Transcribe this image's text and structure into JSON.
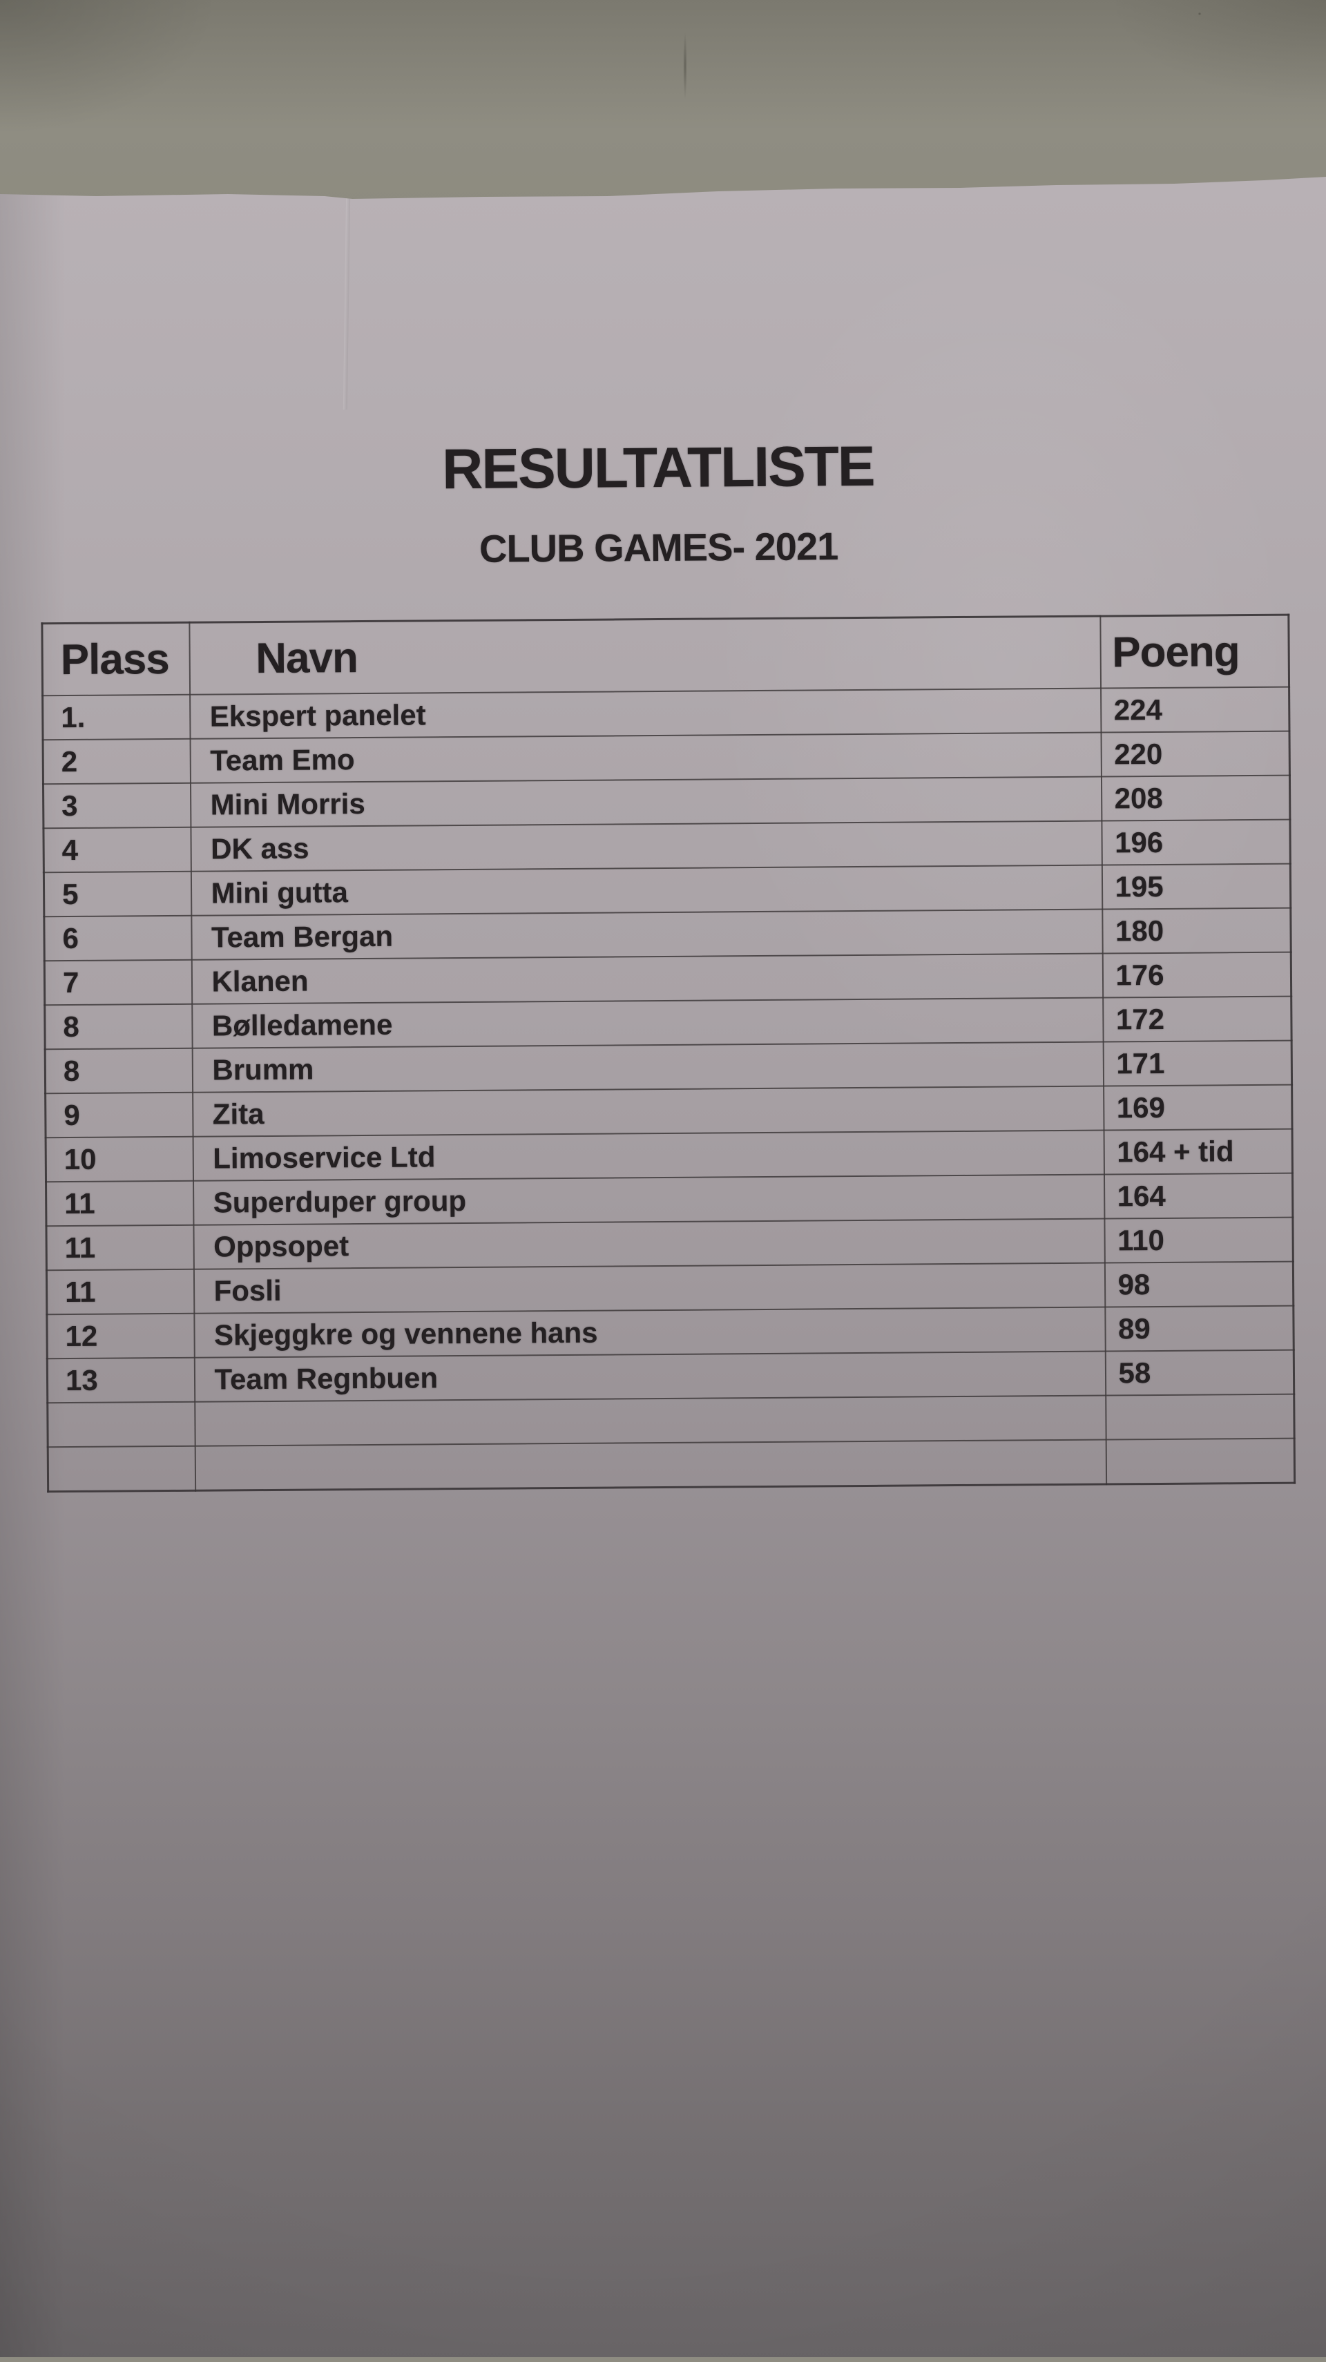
{
  "document": {
    "title": "RESULTATLISTE",
    "subtitle": "CLUB GAMES- 2021"
  },
  "table": {
    "headers": [
      "Plass",
      "Navn",
      "Poeng"
    ],
    "rows": [
      {
        "plass": "1.",
        "navn": "Ekspert panelet",
        "poeng": "224"
      },
      {
        "plass": "2",
        "navn": "Team Emo",
        "poeng": "220"
      },
      {
        "plass": "3",
        "navn": "Mini Morris",
        "poeng": "208"
      },
      {
        "plass": "4",
        "navn": "DK ass",
        "poeng": "196"
      },
      {
        "plass": "5",
        "navn": "Mini gutta",
        "poeng": "195"
      },
      {
        "plass": "6",
        "navn": "Team Bergan",
        "poeng": "180"
      },
      {
        "plass": "7",
        "navn": "Klanen",
        "poeng": "176"
      },
      {
        "plass": "8",
        "navn": "Bølledamene",
        "poeng": "172"
      },
      {
        "plass": "8",
        "navn": "Brumm",
        "poeng": "171"
      },
      {
        "plass": "9",
        "navn": "Zita",
        "poeng": "169"
      },
      {
        "plass": "10",
        "navn": "Limoservice Ltd",
        "poeng": "164 + tid"
      },
      {
        "plass": "11",
        "navn": "Superduper group",
        "poeng": "164"
      },
      {
        "plass": "11",
        "navn": "Oppsopet",
        "poeng": "110"
      },
      {
        "plass": "11",
        "navn": "Fosli",
        "poeng": "98"
      },
      {
        "plass": "12",
        "navn": "Skjeggkre og vennene hans",
        "poeng": "89"
      },
      {
        "plass": "13",
        "navn": "Team Regnbuen",
        "poeng": "58"
      },
      {
        "plass": "",
        "navn": "",
        "poeng": ""
      },
      {
        "plass": "",
        "navn": "",
        "poeng": ""
      }
    ]
  },
  "colors": {
    "paper_light": "#b7b0b4",
    "paper_dark": "#6a6668",
    "wall": "#8e8c81",
    "ink": "#242022",
    "table_line": "#454042"
  }
}
